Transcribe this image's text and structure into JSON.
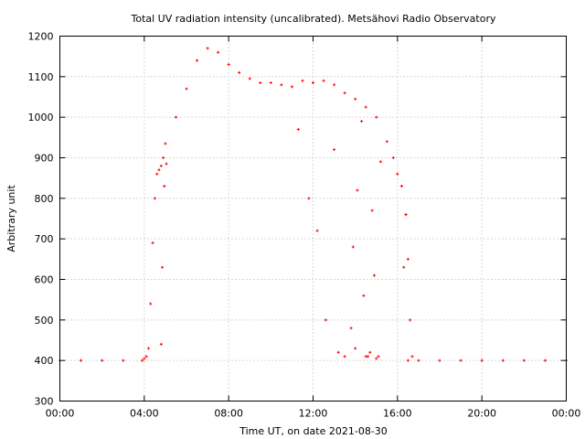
{
  "chart_data": {
    "type": "scatter",
    "title": "Total UV radiation intensity (uncalibrated). Metsähovi Radio Observatory",
    "xlabel": "Time UT, on date 2021-08-30",
    "ylabel": "Arbitrary unit",
    "xlim": [
      0,
      24
    ],
    "ylim": [
      300,
      1200
    ],
    "x_ticks": [
      0,
      4,
      8,
      12,
      16,
      20,
      24
    ],
    "x_tick_labels": [
      "00:00",
      "04:00",
      "08:00",
      "12:00",
      "16:00",
      "20:00",
      "00:00"
    ],
    "y_ticks": [
      300,
      400,
      500,
      600,
      700,
      800,
      900,
      1000,
      1100,
      1200
    ],
    "y_tick_labels": [
      "300",
      "400",
      "500",
      "600",
      "700",
      "800",
      "900",
      "1000",
      "1100",
      "1200"
    ],
    "grid": true,
    "series": [
      {
        "color": "#ff0000",
        "marker": "plus",
        "x": [
          0.0,
          1.0,
          2.0,
          3.0,
          3.9,
          4.0,
          4.1,
          4.2,
          4.3,
          4.4,
          4.5,
          4.6,
          4.7,
          4.8,
          4.9,
          5.0,
          5.5,
          6.0,
          6.5,
          7.0,
          7.5,
          8.0,
          8.5,
          9.0,
          9.5,
          10.0,
          10.5,
          11.0,
          11.5,
          12.0,
          12.5,
          13.0,
          13.5,
          14.0,
          14.5,
          15.0,
          15.5,
          15.8,
          16.0,
          16.2,
          16.4,
          16.5,
          16.6,
          16.7,
          17.0,
          18.0,
          19.0,
          20.0,
          21.0,
          22.0,
          23.0,
          24.0,
          4.8,
          4.85,
          4.95,
          5.05,
          11.3,
          11.8,
          12.2,
          12.6,
          13.0,
          13.2,
          13.5,
          13.8,
          13.9,
          14.0,
          14.1,
          14.3,
          14.4,
          14.5,
          14.6,
          14.7,
          14.8,
          14.9,
          15.0,
          15.1,
          15.2,
          16.3,
          16.4,
          16.5
        ],
        "y": [
          400,
          400,
          400,
          400,
          400,
          405,
          410,
          430,
          540,
          690,
          800,
          860,
          870,
          880,
          900,
          935,
          1000,
          1070,
          1140,
          1170,
          1160,
          1130,
          1110,
          1095,
          1085,
          1085,
          1080,
          1075,
          1090,
          1085,
          1090,
          1080,
          1060,
          1045,
          1025,
          1000,
          940,
          900,
          860,
          830,
          760,
          650,
          500,
          410,
          400,
          400,
          400,
          400,
          400,
          400,
          400,
          400,
          440,
          630,
          830,
          885,
          970,
          800,
          720,
          500,
          920,
          420,
          410,
          480,
          680,
          430,
          820,
          990,
          560,
          410,
          410,
          420,
          770,
          610,
          405,
          410,
          890,
          630,
          760,
          400
        ]
      }
    ]
  }
}
